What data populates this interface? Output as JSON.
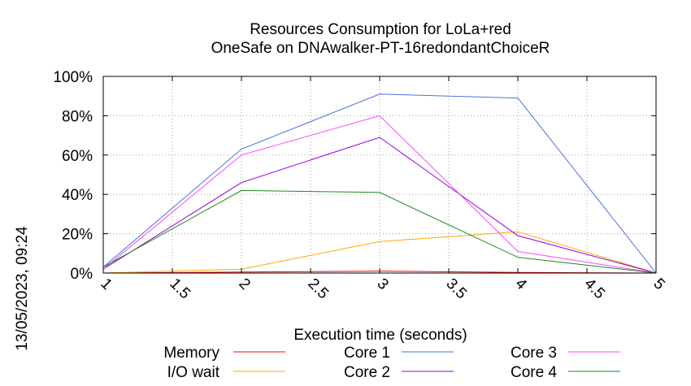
{
  "chart_data": {
    "type": "line",
    "title": "Resources Consumption for LoLa+red",
    "subtitle": "OneSafe on DNAwalker-PT-16redondantChoiceR",
    "xlabel": "Execution time (seconds)",
    "ylabel": "",
    "side_label": "13/05/2023, 09:24",
    "xlim": [
      1,
      5
    ],
    "ylim": [
      0,
      100
    ],
    "x_ticks": [
      "1",
      "1.5",
      "2",
      "2.5",
      "3",
      "3.5",
      "4",
      "4.5",
      "5"
    ],
    "y_ticks": [
      "0%",
      "20%",
      "40%",
      "60%",
      "80%",
      "100%"
    ],
    "grid": true,
    "legend_position": "bottom",
    "x": [
      1,
      2,
      3,
      4,
      5
    ],
    "series": [
      {
        "name": "Memory",
        "color": "#ff0000",
        "values": [
          0,
          0.5,
          1,
          0.3,
          0
        ]
      },
      {
        "name": "I/O wait",
        "color": "#ffa500",
        "values": [
          0,
          2,
          16,
          21,
          0
        ]
      },
      {
        "name": "Core 1",
        "color": "#4a72d8",
        "values": [
          3,
          63,
          91,
          89,
          0
        ]
      },
      {
        "name": "Core 2",
        "color": "#9400d3",
        "values": [
          2,
          46,
          69,
          19,
          0
        ]
      },
      {
        "name": "Core 3",
        "color": "#ff44ff",
        "values": [
          2,
          60,
          80,
          11,
          0
        ]
      },
      {
        "name": "Core 4",
        "color": "#1a8a1a",
        "values": [
          3,
          42,
          41,
          8,
          0
        ]
      }
    ]
  }
}
